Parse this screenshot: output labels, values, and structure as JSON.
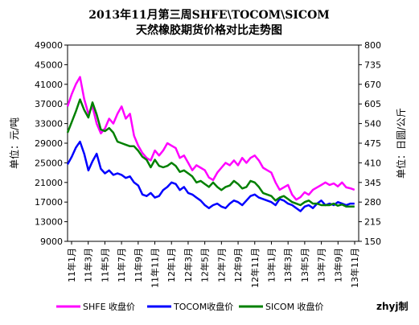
{
  "chart_data": {
    "type": "line",
    "title_lines": [
      "2013年11月第三周SHFE\\TOCOM\\SICOM",
      "天然橡胶期货价格对比走势图"
    ],
    "ylabel_left": "单位：元/吨",
    "ylabel_right": "单位：日圆/公斤",
    "ylim_left": [
      9000,
      49000
    ],
    "ylim_right": [
      150,
      800
    ],
    "yticks_left": [
      9000,
      13000,
      17000,
      21000,
      25000,
      29000,
      33000,
      37000,
      41000,
      45000,
      49000
    ],
    "yticks_right": [
      150,
      215,
      280,
      345,
      410,
      475,
      540,
      605,
      670,
      735,
      800
    ],
    "xlim": [
      0,
      35
    ],
    "xticks": [
      "11年1月",
      "11年3月",
      "11年5月",
      "11年7月",
      "11年9月",
      "11年11月",
      "12年1月",
      "12年3月",
      "12年5月",
      "12年7月",
      "12年9月",
      "12年11月",
      "13年1月",
      "13年3月",
      "13年5月",
      "13年7月",
      "13年9月",
      "13年11月"
    ],
    "credit": "zhyj制",
    "series": [
      {
        "name": "SHFE 收盘价",
        "axis": "left",
        "color": "#ff00ff",
        "x": [
          0,
          0.5,
          1,
          1.5,
          2,
          2.5,
          3,
          3.5,
          4,
          4.5,
          5,
          5.5,
          6,
          6.5,
          7,
          7.5,
          8,
          8.5,
          9,
          9.5,
          10,
          10.5,
          11,
          11.5,
          12,
          12.5,
          13,
          13.5,
          14,
          14.5,
          15,
          15.5,
          16,
          16.5,
          17,
          17.5,
          18,
          18.5,
          19,
          19.5,
          20,
          20.5,
          21,
          21.5,
          22,
          22.5,
          23,
          23.5,
          24,
          24.5,
          25,
          25.5,
          26,
          26.5,
          27,
          27.5,
          28,
          28.5,
          29,
          29.5,
          30,
          30.5,
          31,
          31.5,
          32,
          32.5,
          33,
          33.5,
          34,
          34.5
        ],
        "values": [
          36500,
          39000,
          41000,
          42500,
          38000,
          35000,
          36500,
          33000,
          31000,
          32000,
          34000,
          33000,
          35000,
          36500,
          34000,
          35000,
          30500,
          28500,
          27000,
          26000,
          25500,
          27500,
          26500,
          27500,
          29000,
          28500,
          28000,
          26000,
          26500,
          25000,
          23500,
          24500,
          24000,
          23500,
          22000,
          21500,
          23000,
          24000,
          25000,
          24500,
          25500,
          24500,
          26000,
          25000,
          26000,
          26500,
          25500,
          24000,
          23500,
          23000,
          21000,
          19500,
          20000,
          20500,
          18500,
          17500,
          18000,
          19000,
          18500,
          19500,
          20000,
          20500,
          21000,
          20500,
          20800,
          20200,
          21000,
          20000,
          19800,
          19500
        ]
      },
      {
        "name": "TOCOM收盘价",
        "axis": "right",
        "color": "#0000ff",
        "x": [
          0,
          0.5,
          1,
          1.5,
          2,
          2.5,
          3,
          3.5,
          4,
          4.5,
          5,
          5.5,
          6,
          6.5,
          7,
          7.5,
          8,
          8.5,
          9,
          9.5,
          10,
          10.5,
          11,
          11.5,
          12,
          12.5,
          13,
          13.5,
          14,
          14.5,
          15,
          15.5,
          16,
          16.5,
          17,
          17.5,
          18,
          18.5,
          19,
          19.5,
          20,
          20.5,
          21,
          21.5,
          22,
          22.5,
          23,
          23.5,
          24,
          24.5,
          25,
          25.5,
          26,
          26.5,
          27,
          27.5,
          28,
          28.5,
          29,
          29.5,
          30,
          30.5,
          31,
          31.5,
          32,
          32.5,
          33,
          33.5,
          34,
          34.5
        ],
        "values": [
          405,
          430,
          460,
          480,
          440,
          385,
          415,
          440,
          390,
          375,
          385,
          370,
          375,
          370,
          360,
          365,
          345,
          335,
          305,
          300,
          310,
          295,
          300,
          320,
          330,
          345,
          340,
          320,
          330,
          310,
          305,
          295,
          285,
          270,
          260,
          270,
          275,
          265,
          260,
          275,
          285,
          280,
          270,
          285,
          300,
          305,
          295,
          290,
          285,
          280,
          270,
          290,
          285,
          275,
          270,
          260,
          250,
          265,
          270,
          260,
          275,
          285,
          270,
          275,
          270,
          280,
          275,
          270,
          275,
          275
        ]
      },
      {
        "name": "SICOM 收盘价",
        "axis": "right",
        "color": "#008000",
        "x": [
          0,
          0.5,
          1,
          1.5,
          2,
          2.5,
          3,
          3.5,
          4,
          4.5,
          5,
          5.5,
          6,
          6.5,
          7,
          7.5,
          8,
          8.5,
          9,
          9.5,
          10,
          10.5,
          11,
          11.5,
          12,
          12.5,
          13,
          13.5,
          14,
          14.5,
          15,
          15.5,
          16,
          16.5,
          17,
          17.5,
          18,
          18.5,
          19,
          19.5,
          20,
          20.5,
          21,
          21.5,
          22,
          22.5,
          23,
          23.5,
          24,
          24.5,
          25,
          25.5,
          26,
          26.5,
          27,
          27.5,
          28,
          28.5,
          29,
          29.5,
          30,
          30.5,
          31,
          31.5,
          32,
          32.5,
          33,
          33.5,
          34,
          34.5
        ],
        "values": [
          510,
          545,
          580,
          620,
          585,
          560,
          610,
          570,
          520,
          515,
          525,
          510,
          480,
          475,
          470,
          465,
          465,
          450,
          430,
          420,
          395,
          420,
          400,
          395,
          400,
          410,
          400,
          380,
          385,
          375,
          365,
          345,
          350,
          340,
          330,
          345,
          330,
          320,
          330,
          335,
          350,
          340,
          325,
          330,
          350,
          345,
          330,
          310,
          305,
          300,
          285,
          295,
          300,
          290,
          280,
          275,
          270,
          280,
          285,
          275,
          275,
          270,
          270,
          270,
          275,
          268,
          272,
          265,
          265,
          265
        ]
      }
    ],
    "legend": {
      "placement": "bottom"
    }
  }
}
